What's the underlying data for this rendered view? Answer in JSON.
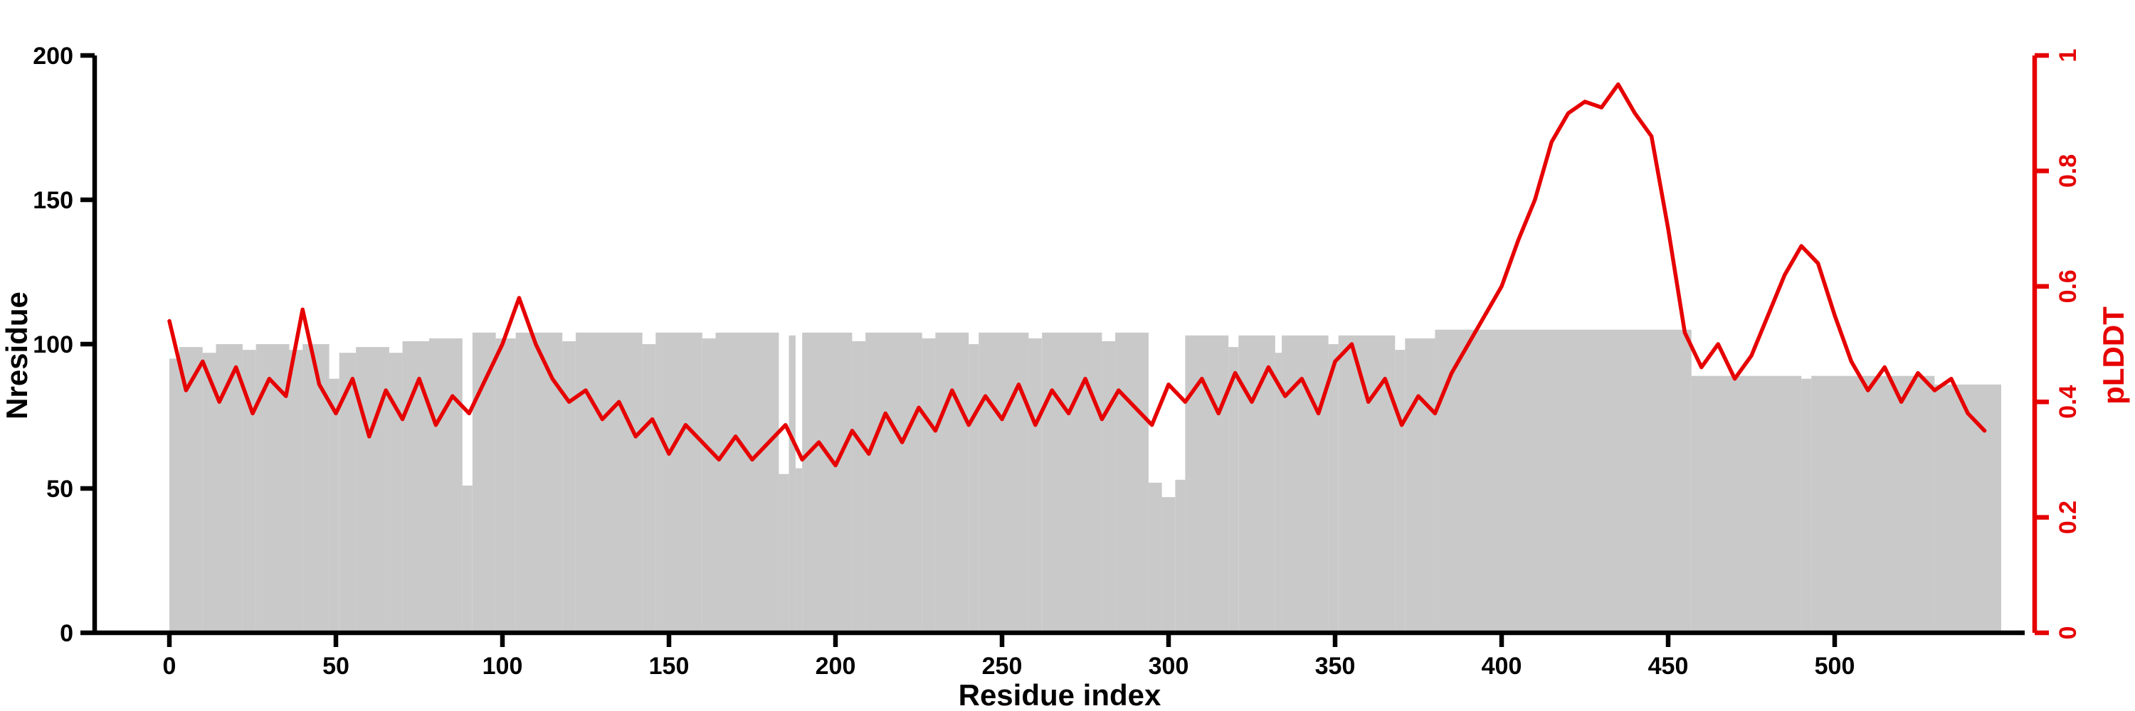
{
  "chart_data": {
    "type": "composite",
    "title": "",
    "xlabel": "Residue index",
    "ylabel_left": "Nresidue",
    "ylabel_right": "pLDDT",
    "xlim": [
      0,
      550
    ],
    "ylim_left": [
      0,
      200
    ],
    "ylim_right": [
      0,
      1
    ],
    "x_ticks": [
      0,
      50,
      100,
      150,
      200,
      250,
      300,
      350,
      400,
      450,
      500
    ],
    "left_ticks": [
      0,
      50,
      100,
      150,
      200
    ],
    "right_ticks": [
      0,
      0.2,
      0.4,
      0.6,
      0.8,
      1
    ],
    "grid": false,
    "legend": "none",
    "colors": {
      "bars": "#c9c9c9",
      "line": "#e60000",
      "axis": "#000000"
    },
    "series": [
      {
        "name": "Nresidue",
        "type": "bar",
        "note": "gray coverage bars; segments are [start_residue, end_residue, height]",
        "segments": [
          [
            0,
            3,
            95
          ],
          [
            3,
            10,
            99
          ],
          [
            10,
            14,
            97
          ],
          [
            14,
            22,
            100
          ],
          [
            22,
            26,
            98
          ],
          [
            26,
            36,
            100
          ],
          [
            36,
            40,
            98
          ],
          [
            40,
            48,
            100
          ],
          [
            48,
            51,
            88
          ],
          [
            51,
            56,
            97
          ],
          [
            56,
            66,
            99
          ],
          [
            66,
            70,
            97
          ],
          [
            70,
            78,
            101
          ],
          [
            78,
            88,
            102
          ],
          [
            88,
            91,
            51
          ],
          [
            91,
            98,
            104
          ],
          [
            98,
            104,
            102
          ],
          [
            104,
            118,
            104
          ],
          [
            118,
            122,
            101
          ],
          [
            122,
            142,
            104
          ],
          [
            142,
            146,
            100
          ],
          [
            146,
            160,
            104
          ],
          [
            160,
            164,
            102
          ],
          [
            164,
            183,
            104
          ],
          [
            183,
            186,
            55
          ],
          [
            186,
            188,
            103
          ],
          [
            188,
            190,
            57
          ],
          [
            190,
            205,
            104
          ],
          [
            205,
            209,
            101
          ],
          [
            209,
            226,
            104
          ],
          [
            226,
            230,
            102
          ],
          [
            230,
            240,
            104
          ],
          [
            240,
            243,
            100
          ],
          [
            243,
            258,
            104
          ],
          [
            258,
            262,
            102
          ],
          [
            262,
            280,
            104
          ],
          [
            280,
            284,
            101
          ],
          [
            284,
            294,
            104
          ],
          [
            294,
            298,
            52
          ],
          [
            298,
            302,
            47
          ],
          [
            302,
            305,
            53
          ],
          [
            305,
            318,
            103
          ],
          [
            318,
            321,
            99
          ],
          [
            321,
            332,
            103
          ],
          [
            332,
            334,
            97
          ],
          [
            334,
            348,
            103
          ],
          [
            348,
            351,
            100
          ],
          [
            351,
            368,
            103
          ],
          [
            368,
            371,
            98
          ],
          [
            371,
            380,
            102
          ],
          [
            380,
            457,
            105
          ],
          [
            457,
            490,
            89
          ],
          [
            490,
            493,
            88
          ],
          [
            493,
            530,
            89
          ],
          [
            530,
            550,
            86
          ]
        ]
      },
      {
        "name": "pLDDT",
        "type": "line",
        "x_start": 0,
        "x_step": 5,
        "values": [
          0.54,
          0.42,
          0.47,
          0.4,
          0.46,
          0.38,
          0.44,
          0.41,
          0.56,
          0.43,
          0.38,
          0.44,
          0.34,
          0.42,
          0.37,
          0.44,
          0.36,
          0.41,
          0.38,
          0.44,
          0.5,
          0.58,
          0.5,
          0.44,
          0.4,
          0.42,
          0.37,
          0.4,
          0.34,
          0.37,
          0.31,
          0.36,
          0.33,
          0.3,
          0.34,
          0.3,
          0.33,
          0.36,
          0.3,
          0.33,
          0.29,
          0.35,
          0.31,
          0.38,
          0.33,
          0.39,
          0.35,
          0.42,
          0.36,
          0.41,
          0.37,
          0.43,
          0.36,
          0.42,
          0.38,
          0.44,
          0.37,
          0.42,
          0.39,
          0.36,
          0.43,
          0.4,
          0.44,
          0.38,
          0.45,
          0.4,
          0.46,
          0.41,
          0.44,
          0.38,
          0.47,
          0.5,
          0.4,
          0.44,
          0.36,
          0.41,
          0.38,
          0.45,
          0.5,
          0.55,
          0.6,
          0.68,
          0.75,
          0.85,
          0.9,
          0.92,
          0.91,
          0.95,
          0.9,
          0.86,
          0.7,
          0.52,
          0.46,
          0.5,
          0.44,
          0.48,
          0.55,
          0.62,
          0.67,
          0.64,
          0.55,
          0.47,
          0.42,
          0.46,
          0.4,
          0.45,
          0.42,
          0.44,
          0.38,
          0.35
        ]
      }
    ]
  }
}
